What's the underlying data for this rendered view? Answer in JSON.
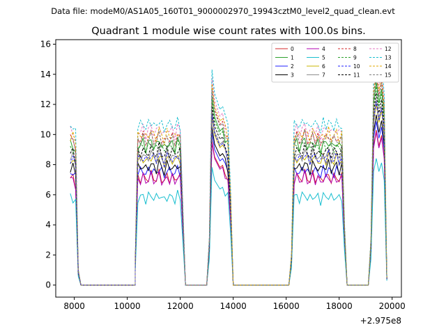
{
  "chart_data": {
    "type": "line",
    "suptitle": "Data file: modeM0/AS1A05_160T01_9000002970_19943cztM0_level2_quad_clean.evt",
    "title": "Quadrant 1 module wise count rates with 100.0s bins.",
    "xlabel": "",
    "ylabel": "",
    "x_offset_label": "+2.975e8",
    "xlim": [
      7300,
      20350
    ],
    "ylim": [
      -0.8,
      16.3
    ],
    "xticks": [
      8000,
      10000,
      12000,
      14000,
      16000,
      18000,
      20000
    ],
    "yticks": [
      0,
      2,
      4,
      6,
      8,
      10,
      12,
      14,
      16
    ],
    "bin_size_s": 100,
    "segments_x_offset": [
      {
        "x": [
          7850,
          7950,
          8050,
          8150,
          8250
        ],
        "pattern": [
          1.0,
          1.0,
          0.95,
          0.1,
          0.0
        ]
      },
      {
        "x": [
          8250,
          10300
        ],
        "pattern": [
          0.0,
          0.0
        ]
      },
      {
        "x": [
          10300,
          10400,
          10500,
          10600,
          10700,
          10800,
          10900,
          11000,
          11100,
          11200,
          11300,
          11400,
          11500,
          11600,
          11700,
          11800,
          11900,
          12000,
          12100,
          12200
        ],
        "pattern": [
          0.15,
          1.0,
          1.0,
          1.02,
          0.98,
          1.01,
          1.03,
          1.0,
          0.99,
          1.04,
          1.0,
          0.97,
          1.02,
          1.0,
          1.01,
          0.98,
          1.03,
          1.0,
          0.5,
          0.0
        ]
      },
      {
        "x": [
          12200,
          13000
        ],
        "pattern": [
          0.0,
          0.0
        ]
      },
      {
        "x": [
          13000,
          13100,
          13200,
          13300,
          13400,
          13500,
          13600,
          13700,
          13800,
          13900,
          14000
        ],
        "pattern": [
          0.0,
          0.3,
          1.35,
          1.2,
          1.15,
          1.1,
          1.12,
          1.05,
          1.0,
          0.6,
          0.0
        ]
      },
      {
        "x": [
          14000,
          16100
        ],
        "pattern": [
          0.0,
          0.0
        ]
      },
      {
        "x": [
          16100,
          16200,
          16300,
          16400,
          16500,
          16600,
          16700,
          16800,
          16900,
          17000,
          17100,
          17200,
          17300,
          17400,
          17500,
          17600,
          17700,
          17800,
          17900,
          18000,
          18100,
          18200,
          18300
        ],
        "pattern": [
          0.0,
          0.2,
          1.0,
          1.02,
          0.99,
          1.01,
          1.04,
          1.0,
          0.98,
          1.03,
          1.0,
          1.01,
          0.97,
          1.02,
          1.0,
          1.03,
          0.99,
          1.0,
          1.02,
          0.98,
          1.01,
          0.4,
          0.0
        ]
      },
      {
        "x": [
          18300,
          19100
        ],
        "pattern": [
          0.0,
          0.0
        ]
      },
      {
        "x": [
          19100,
          19200,
          19300,
          19400,
          19500,
          19600,
          19700,
          19800
        ],
        "pattern": [
          0.0,
          0.3,
          1.3,
          1.45,
          1.3,
          1.4,
          1.2,
          0.05
        ]
      }
    ],
    "series": [
      {
        "name": "0",
        "color": "#d62728",
        "dash": "solid",
        "level": 7.1
      },
      {
        "name": "1",
        "color": "#2ca02c",
        "dash": "solid",
        "level": 9.3
      },
      {
        "name": "2",
        "color": "#1f1fff",
        "dash": "solid",
        "level": 7.5
      },
      {
        "name": "3",
        "color": "#000000",
        "dash": "solid",
        "level": 7.8
      },
      {
        "name": "4",
        "color": "#b000b0",
        "dash": "solid",
        "level": 7.0
      },
      {
        "name": "5",
        "color": "#17becf",
        "dash": "solid",
        "level": 5.8
      },
      {
        "name": "6",
        "color": "#c8b400",
        "dash": "solid",
        "level": 8.3
      },
      {
        "name": "7",
        "color": "#8c8c8c",
        "dash": "solid",
        "level": 8.5
      },
      {
        "name": "8",
        "color": "#d62728",
        "dash": "dashed",
        "level": 9.7
      },
      {
        "name": "9",
        "color": "#2ca02c",
        "dash": "dashed",
        "level": 9.1
      },
      {
        "name": "10",
        "color": "#1f1fff",
        "dash": "dashed",
        "level": 8.4
      },
      {
        "name": "11",
        "color": "#000000",
        "dash": "dashed",
        "level": 8.8
      },
      {
        "name": "12",
        "color": "#e377c2",
        "dash": "dashed",
        "level": 10.2
      },
      {
        "name": "13",
        "color": "#17becf",
        "dash": "dashed",
        "level": 10.6
      },
      {
        "name": "14",
        "color": "#e0a800",
        "dash": "dashed",
        "level": 9.9
      },
      {
        "name": "15",
        "color": "#7f7f7f",
        "dash": "dashed",
        "level": 9.6
      }
    ],
    "legend": {
      "location": "top-right",
      "columns": 4
    }
  }
}
